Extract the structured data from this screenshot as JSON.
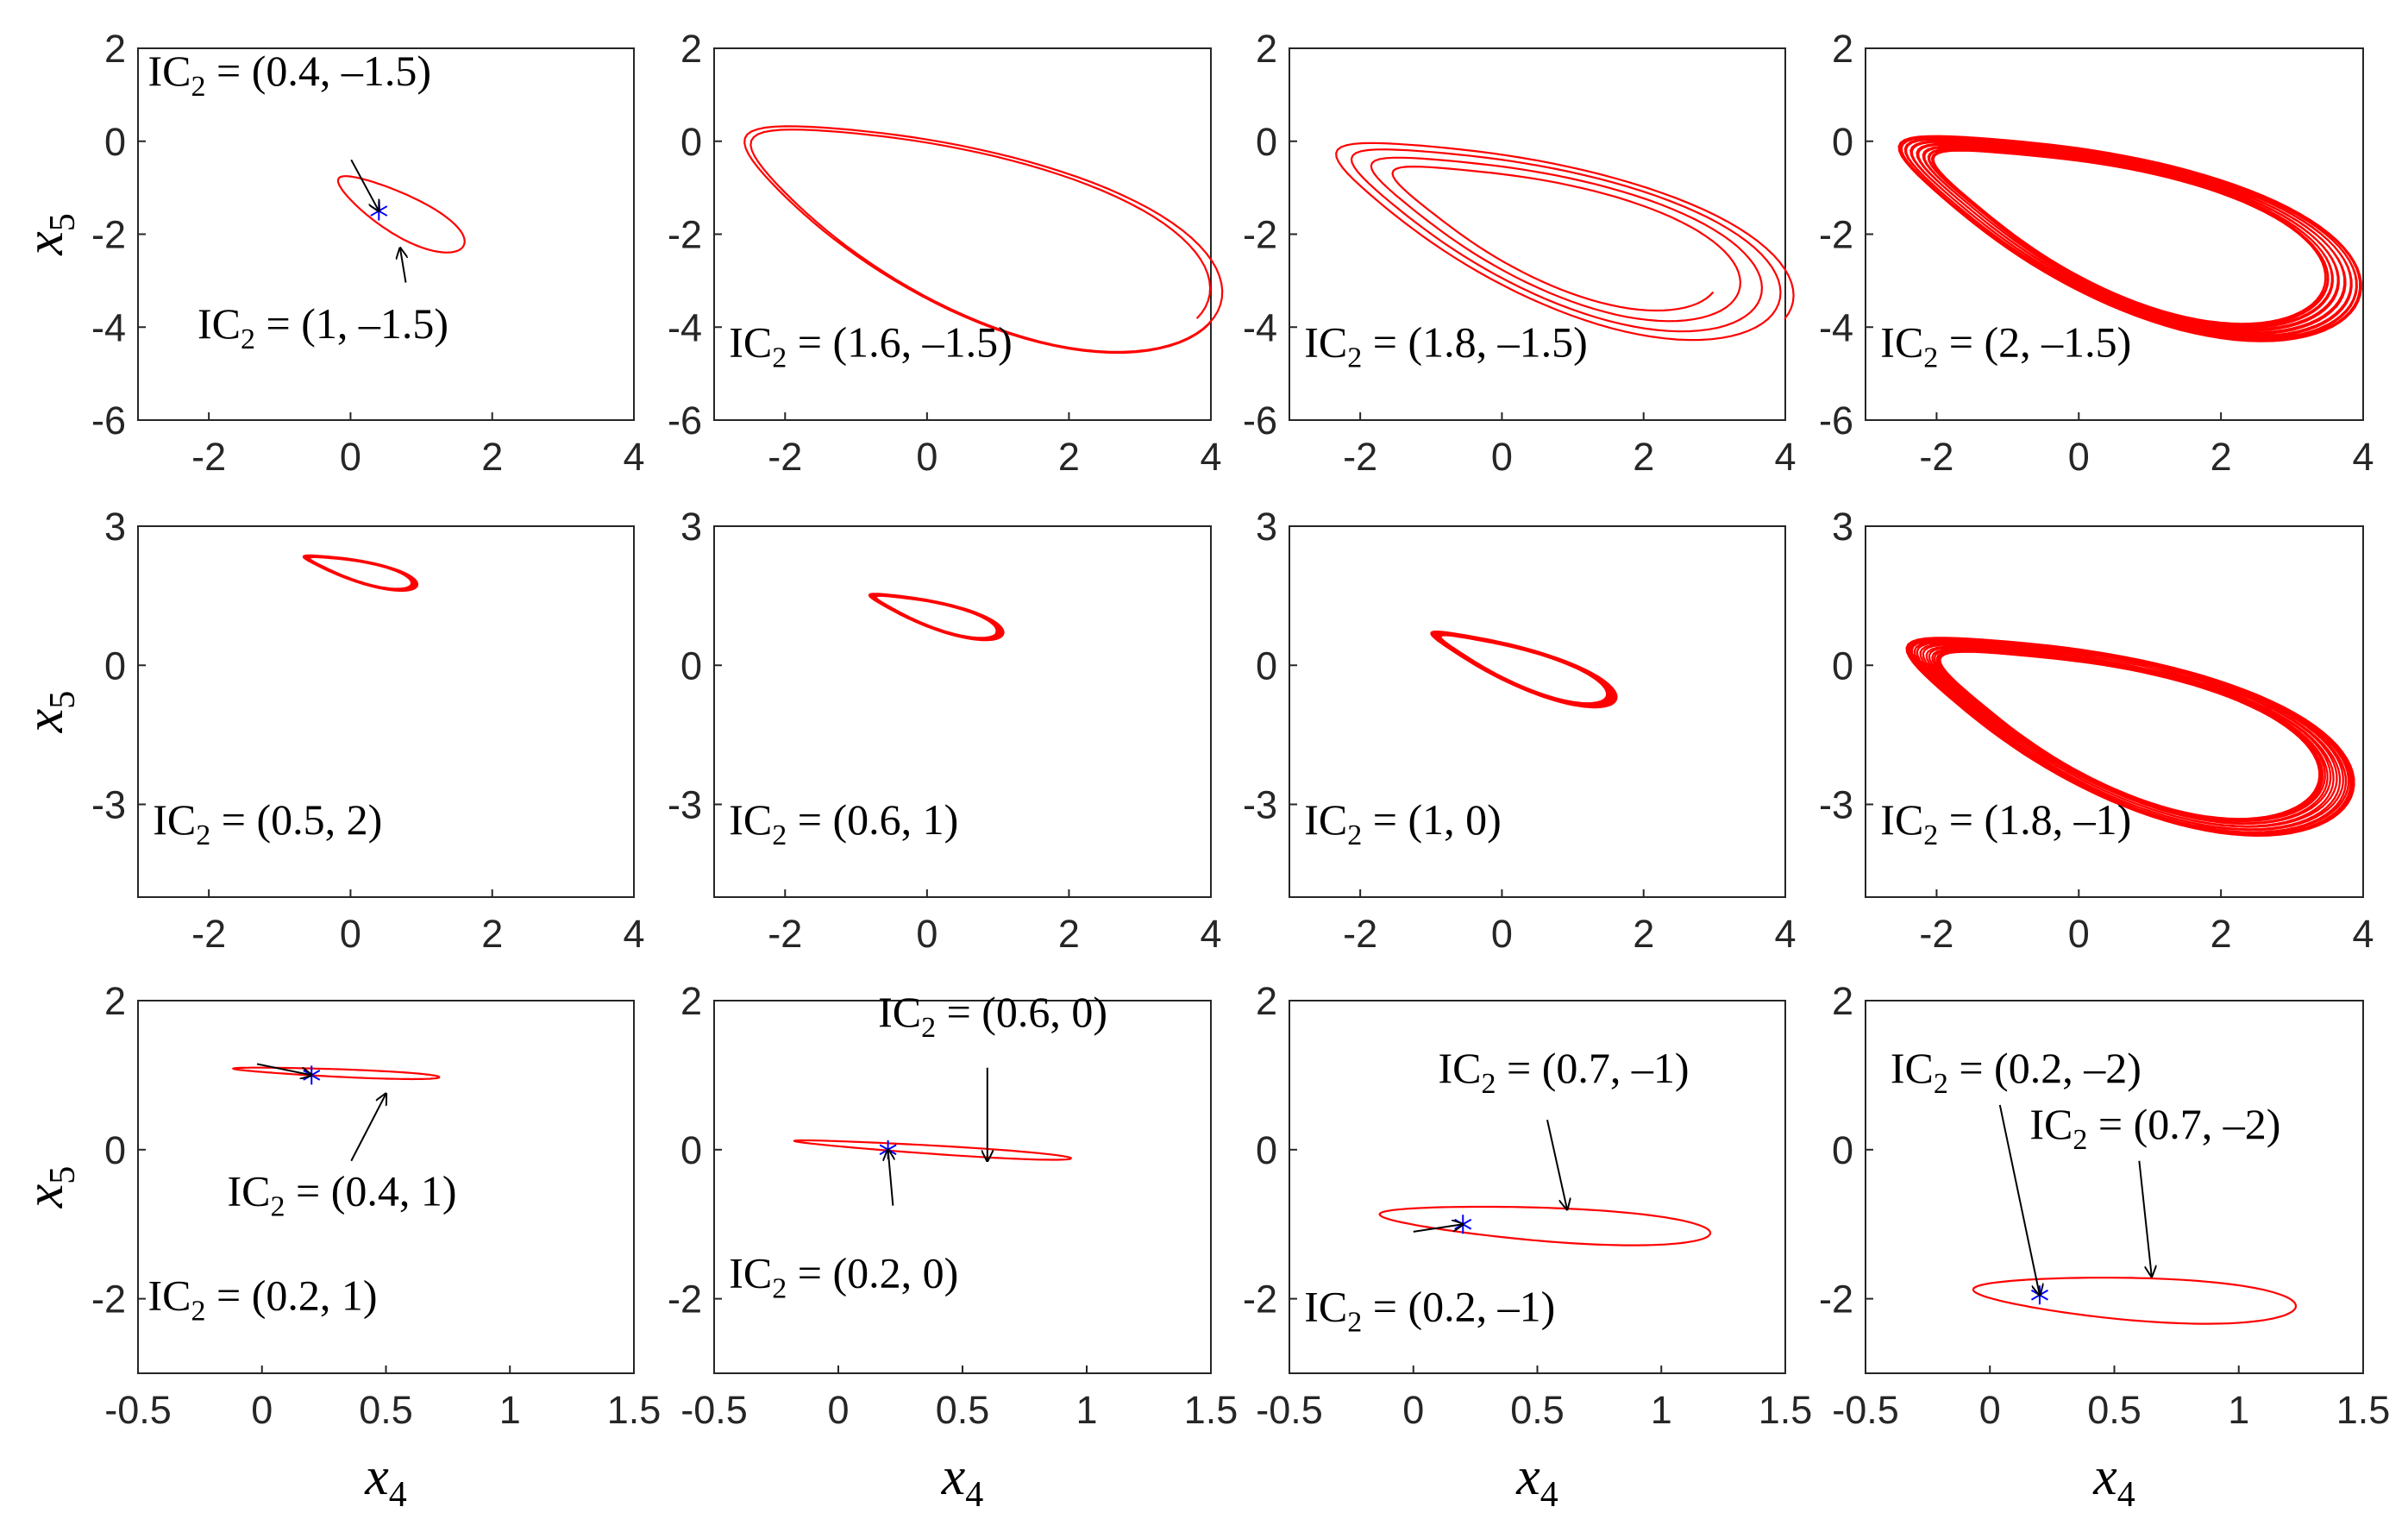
{
  "figure": {
    "title": "",
    "curve_color": "#ff0000",
    "marker_color": "#0000ff"
  },
  "chart_data": [
    {
      "type": "line",
      "title": "",
      "xlabel": "",
      "ylabel": "x5",
      "xlim": [
        -3,
        4
      ],
      "ylim": [
        -6,
        2
      ],
      "xticks": [
        -2,
        0,
        2,
        4
      ],
      "yticks": [
        -6,
        -4,
        -2,
        0,
        2
      ],
      "annotations": [
        {
          "text": "IC",
          "sub": "2",
          "rest": " = (0.4, –1.5)",
          "target": [
            0.4,
            -1.5
          ]
        },
        {
          "text": "IC",
          "sub": "2",
          "rest": " = (1, –1.5)",
          "target": [
            0.7,
            -2.3
          ]
        }
      ],
      "trajectory": {
        "kind": "ellipse",
        "center": [
          0.7,
          -1.55
        ],
        "r1": 1.15,
        "r2": 0.38,
        "angle_deg": -42
      },
      "markers": [
        [
          0.4,
          -1.5
        ]
      ]
    },
    {
      "type": "line",
      "title": "",
      "xlabel": "",
      "ylabel": "",
      "xlim": [
        -3,
        4
      ],
      "ylim": [
        -6,
        2
      ],
      "xticks": [
        -2,
        0,
        2,
        4
      ],
      "yticks": [
        -6,
        -4,
        -2,
        0,
        2
      ],
      "annotations": [
        {
          "text": "IC",
          "sub": "2",
          "rest": " = (1.6, –1.5)"
        }
      ],
      "trajectory": {
        "kind": "loops",
        "center": [
          0.9,
          -2.0
        ],
        "r1": 2.2,
        "r2": 1.0,
        "angle_deg": -32,
        "loops": 2,
        "spread": 0.22
      },
      "markers": []
    },
    {
      "type": "line",
      "title": "",
      "xlabel": "",
      "ylabel": "",
      "xlim": [
        -3,
        4
      ],
      "ylim": [
        -6,
        2
      ],
      "xticks": [
        -2,
        0,
        2,
        4
      ],
      "yticks": [
        -6,
        -4,
        -2,
        0,
        2
      ],
      "annotations": [
        {
          "text": "IC",
          "sub": "2",
          "rest": " = (1.8, –1.5)"
        }
      ],
      "trajectory": {
        "kind": "loops",
        "center": [
          1.0,
          -2.1
        ],
        "r1": 2.6,
        "r2": 1.1,
        "angle_deg": -30,
        "loops": 4,
        "spread": 0.12
      },
      "markers": []
    },
    {
      "type": "line",
      "title": "",
      "xlabel": "",
      "ylabel": "",
      "xlim": [
        -3,
        4
      ],
      "ylim": [
        -6,
        2
      ],
      "xticks": [
        -2,
        0,
        2,
        4
      ],
      "yticks": [
        -6,
        -4,
        -2,
        0,
        2
      ],
      "annotations": [
        {
          "text": "IC",
          "sub": "2",
          "rest": " = (2, –1.5)"
        }
      ],
      "trajectory": {
        "kind": "loops",
        "center": [
          0.9,
          -2.0
        ],
        "r1": 3.1,
        "r2": 1.4,
        "angle_deg": -30,
        "loops": 40,
        "spread": 0.03
      },
      "markers": []
    },
    {
      "type": "line",
      "title": "",
      "xlabel": "",
      "ylabel": "x5",
      "xlim": [
        -3,
        4
      ],
      "ylim": [
        -5,
        3
      ],
      "xticks": [
        -2,
        0,
        2,
        4
      ],
      "yticks": [
        -3,
        0,
        3
      ],
      "annotations": [
        {
          "text": "IC",
          "sub": "2",
          "rest": " = (0.5, 2)"
        }
      ],
      "trajectory": {
        "kind": "loops",
        "center": [
          0.2,
          2.0
        ],
        "r1": 0.75,
        "r2": 0.22,
        "angle_deg": -22,
        "loops": 14,
        "spread": 0.02
      },
      "markers": []
    },
    {
      "type": "line",
      "title": "",
      "xlabel": "",
      "ylabel": "",
      "xlim": [
        -3,
        4
      ],
      "ylim": [
        -5,
        3
      ],
      "xticks": [
        -2,
        0,
        2,
        4
      ],
      "yticks": [
        -3,
        0,
        3
      ],
      "annotations": [
        {
          "text": "IC",
          "sub": "2",
          "rest": " = (0.6, 1)"
        }
      ],
      "trajectory": {
        "kind": "loops",
        "center": [
          0.2,
          1.05
        ],
        "r1": 0.9,
        "r2": 0.27,
        "angle_deg": -25,
        "loops": 14,
        "spread": 0.02
      },
      "markers": []
    },
    {
      "type": "line",
      "title": "",
      "xlabel": "",
      "ylabel": "",
      "xlim": [
        -3,
        4
      ],
      "ylim": [
        -5,
        3
      ],
      "xticks": [
        -2,
        0,
        2,
        4
      ],
      "yticks": [
        -3,
        0,
        3
      ],
      "annotations": [
        {
          "text": "IC",
          "sub": "2",
          "rest": " = (1, 0)"
        }
      ],
      "trajectory": {
        "kind": "loops",
        "center": [
          0.4,
          -0.1
        ],
        "r1": 1.3,
        "r2": 0.38,
        "angle_deg": -30,
        "loops": 20,
        "spread": 0.02
      },
      "markers": []
    },
    {
      "type": "line",
      "title": "",
      "xlabel": "",
      "ylabel": "",
      "xlim": [
        -3,
        4
      ],
      "ylim": [
        -5,
        3
      ],
      "xticks": [
        -2,
        0,
        2,
        4
      ],
      "yticks": [
        -3,
        0,
        3
      ],
      "annotations": [
        {
          "text": "IC",
          "sub": "2",
          "rest": " = (1.8, –1)"
        }
      ],
      "trajectory": {
        "kind": "loops",
        "center": [
          0.9,
          -1.45
        ],
        "r1": 3.0,
        "r2": 1.35,
        "angle_deg": -30,
        "loops": 40,
        "spread": 0.03
      },
      "markers": []
    },
    {
      "type": "line",
      "title": "",
      "xlabel": "x4",
      "ylabel": "x5",
      "xlim": [
        -0.5,
        1.5
      ],
      "ylim": [
        -3,
        2
      ],
      "xticks": [
        -0.5,
        0,
        0.5,
        1,
        1.5
      ],
      "yticks": [
        -2,
        0,
        2
      ],
      "annotations": [
        {
          "text": "IC",
          "sub": "2",
          "rest": " = (0.4, 1)",
          "target": [
            0.5,
            0.75
          ]
        },
        {
          "text": "IC",
          "sub": "2",
          "rest": " = (0.2, 1)",
          "target": [
            0.2,
            1.0
          ]
        }
      ],
      "trajectory": {
        "kind": "ellipse",
        "center": [
          0.3,
          1.03
        ],
        "r1": 0.42,
        "r2": 0.05,
        "angle_deg": -8
      },
      "markers": [
        [
          0.2,
          1.0
        ]
      ]
    },
    {
      "type": "line",
      "title": "",
      "xlabel": "x4",
      "ylabel": "",
      "xlim": [
        -0.5,
        1.5
      ],
      "ylim": [
        -3,
        2
      ],
      "xticks": [
        -0.5,
        0,
        0.5,
        1,
        1.5
      ],
      "yticks": [
        -2,
        0,
        2
      ],
      "annotations": [
        {
          "text": "IC",
          "sub": "2",
          "rest": " = (0.6, 0)",
          "target": [
            0.6,
            -0.15
          ]
        },
        {
          "text": "IC",
          "sub": "2",
          "rest": " = (0.2, 0)",
          "target": [
            0.2,
            0.0
          ]
        }
      ],
      "trajectory": {
        "kind": "ellipse",
        "center": [
          0.38,
          0.0
        ],
        "r1": 0.57,
        "r2": 0.055,
        "angle_deg": -12
      },
      "markers": [
        [
          0.2,
          0.0
        ]
      ]
    },
    {
      "type": "line",
      "title": "",
      "xlabel": "x4",
      "ylabel": "",
      "xlim": [
        -0.5,
        1.5
      ],
      "ylim": [
        -3,
        2
      ],
      "xticks": [
        -0.5,
        0,
        0.5,
        1,
        1.5
      ],
      "yticks": [
        -2,
        0,
        2
      ],
      "annotations": [
        {
          "text": "IC",
          "sub": "2",
          "rest": " = (0.7, –1)",
          "target": [
            0.62,
            -0.8
          ]
        },
        {
          "text": "IC",
          "sub": "2",
          "rest": " = (0.2, –1)",
          "target": [
            0.2,
            -1.0
          ]
        }
      ],
      "trajectory": {
        "kind": "ellipse",
        "center": [
          0.53,
          -1.0
        ],
        "r1": 0.68,
        "r2": 0.22,
        "angle_deg": -12
      },
      "markers": [
        [
          0.2,
          -1.0
        ]
      ]
    },
    {
      "type": "line",
      "title": "",
      "xlabel": "x4",
      "ylabel": "",
      "xlim": [
        -0.5,
        1.5
      ],
      "ylim": [
        -3,
        2
      ],
      "xticks": [
        -0.5,
        0,
        0.5,
        1,
        1.5
      ],
      "yticks": [
        -2,
        0,
        2
      ],
      "annotations": [
        {
          "text": "IC",
          "sub": "2",
          "rest": " = (0.2, –2)",
          "target": [
            0.2,
            -1.95
          ]
        },
        {
          "text": "IC",
          "sub": "2",
          "rest": " = (0.7, –2)",
          "target": [
            0.65,
            -1.7
          ]
        }
      ],
      "trajectory": {
        "kind": "ellipse",
        "center": [
          0.58,
          -2.0
        ],
        "r1": 0.66,
        "r2": 0.28,
        "angle_deg": -12
      },
      "markers": [
        [
          0.2,
          -1.95
        ]
      ]
    }
  ]
}
